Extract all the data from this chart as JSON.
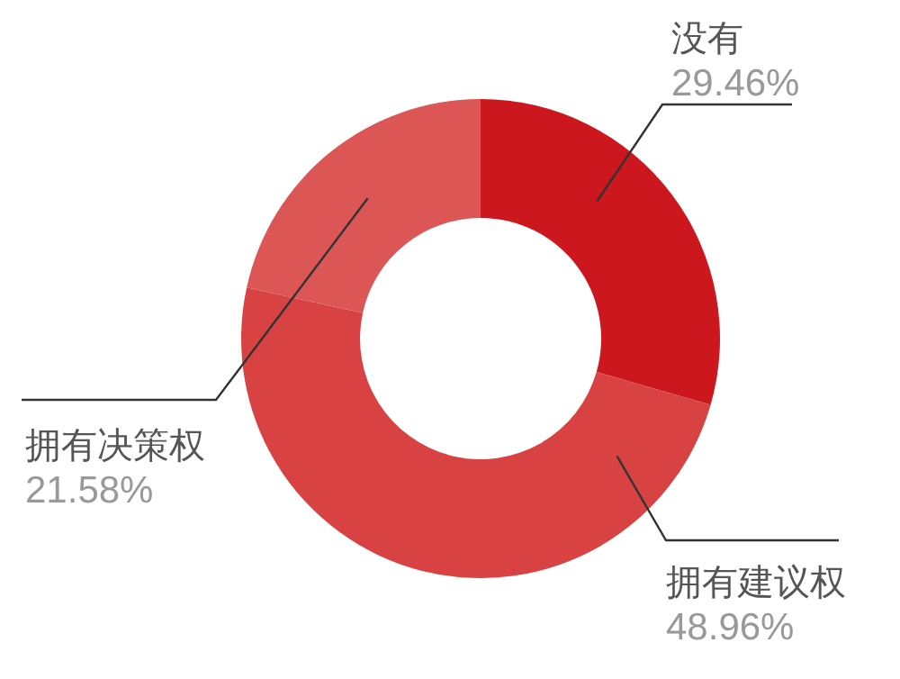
{
  "chart_data": {
    "type": "donut",
    "categories": [
      "没有",
      "拥有建议权",
      "拥有决策权"
    ],
    "values": [
      29.46,
      48.96,
      21.58
    ],
    "value_labels": [
      "29.46%",
      "48.96%",
      "21.58%"
    ],
    "colors": [
      "#cc171e",
      "#d94242",
      "#dc5656"
    ]
  }
}
